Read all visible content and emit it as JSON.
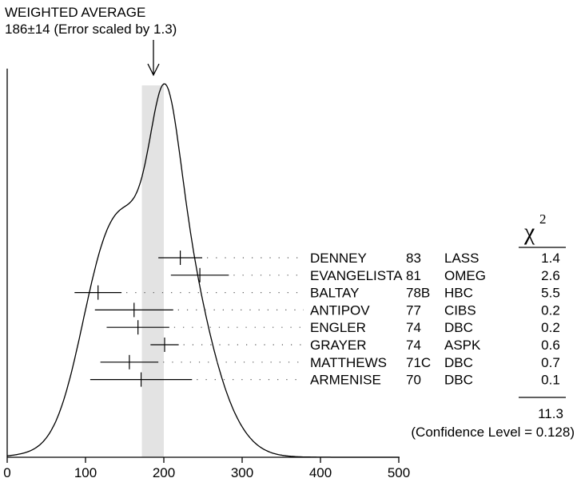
{
  "header": {
    "title": "WEIGHTED AVERAGE",
    "subtitle": "186±14 (Error scaled by 1.3)"
  },
  "chart_data": {
    "type": "ideogram",
    "weighted_average": {
      "value": 186,
      "error": 14,
      "error_scale": 1.3
    },
    "xlim": [
      0,
      500
    ],
    "x_ticks": [
      "0",
      "100",
      "200",
      "300",
      "400",
      "500"
    ],
    "chi2_symbol": "χ",
    "chi2_exponent": "2",
    "measurements": [
      {
        "author": "DENNEY",
        "year": "83",
        "experiment": "LASS",
        "value": 221,
        "error": 28,
        "chi2": "1.4"
      },
      {
        "author": "EVANGELISTA",
        "year": "81",
        "experiment": "OMEG",
        "value": 246,
        "error": 37,
        "chi2": "2.6"
      },
      {
        "author": "BALTAY",
        "year": "78B",
        "experiment": "HBC",
        "value": 116,
        "error": 30,
        "chi2": "5.5"
      },
      {
        "author": "ANTIPOV",
        "year": "77",
        "experiment": "CIBS",
        "value": 162,
        "error": 50,
        "chi2": "0.2"
      },
      {
        "author": "ENGLER",
        "year": "74",
        "experiment": "DBC",
        "value": 167,
        "error": 40,
        "chi2": "0.2"
      },
      {
        "author": "GRAYER",
        "year": "74",
        "experiment": "ASPK",
        "value": 201,
        "error": 18,
        "chi2": "0.6"
      },
      {
        "author": "MATTHEWS",
        "year": "71C",
        "experiment": "DBC",
        "value": 156,
        "error": 37,
        "chi2": "0.7"
      },
      {
        "author": "ARMENISE",
        "year": "70",
        "experiment": "DBC",
        "value": 171,
        "error": 65,
        "chi2": "0.1"
      }
    ],
    "chi2_total": "11.3",
    "confidence_level": "(Confidence Level = 0.128)"
  }
}
